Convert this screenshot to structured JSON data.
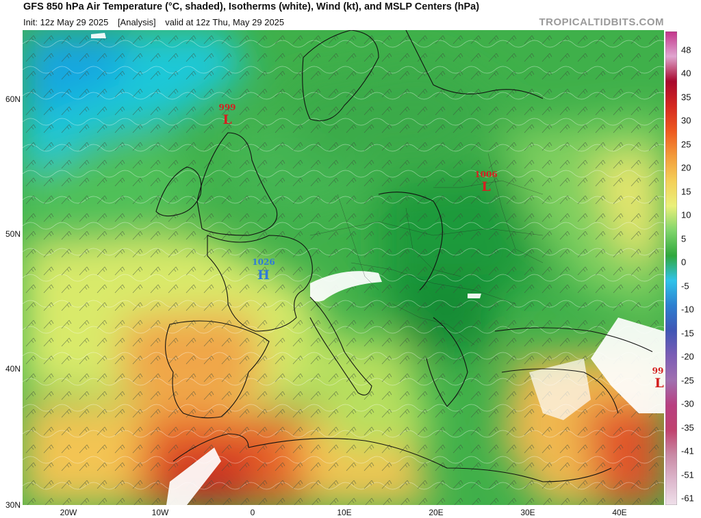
{
  "header": {
    "title": "GFS 850 hPa Air Temperature (°C, shaded), Isotherms (white), Wind (kt), and MSLP Centers (hPa)",
    "init": "Init: 12z May 29 2025",
    "analysis": "[Analysis]",
    "valid": "valid at 12z Thu, May 29 2025",
    "credit": "TROPICALTIDBITS.COM"
  },
  "axes": {
    "lat_labels": [
      "60N",
      "50N",
      "40N",
      "30N"
    ],
    "lon_labels": [
      "20W",
      "10W",
      "0",
      "10E",
      "20E",
      "30E",
      "40E"
    ]
  },
  "colorbar": {
    "labels": [
      "48",
      "40",
      "35",
      "30",
      "25",
      "20",
      "15",
      "10",
      "5",
      "0",
      "-5",
      "-10",
      "-15",
      "-20",
      "-25",
      "-30",
      "-35",
      "-41",
      "-51",
      "-61"
    ],
    "colors": [
      "#c2338a",
      "#e0a6d0",
      "#a8082d",
      "#d52820",
      "#ee5a1f",
      "#f39b3a",
      "#f4cf58",
      "#eaf07a",
      "#7fd56b",
      "#2fa83d",
      "#2fc3ea",
      "#2d7fd0",
      "#4056b5",
      "#7b5db5",
      "#a070b0",
      "#b83f80",
      "#c0436f",
      "#c98aa5",
      "#ddb7cc",
      "#efe0ea"
    ]
  },
  "pressure_centers": [
    {
      "type": "L",
      "value": "999",
      "color": "#d42020"
    },
    {
      "type": "L",
      "value": "1006",
      "color": "#d42020"
    },
    {
      "type": "H",
      "value": "1026",
      "color": "#2f7ad8"
    },
    {
      "type": "L",
      "value": "99",
      "color": "#d42020"
    }
  ]
}
